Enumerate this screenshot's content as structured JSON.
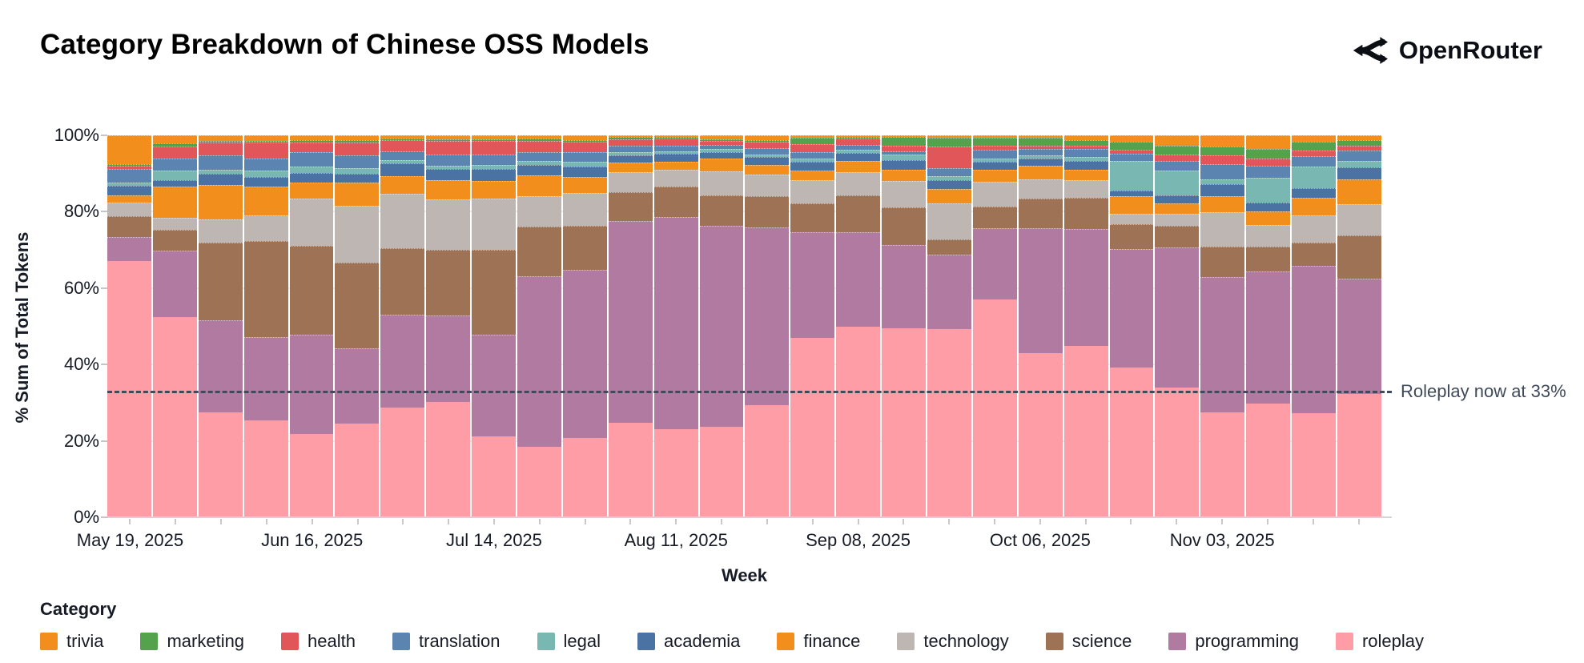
{
  "page": {
    "title": "Category Breakdown of Chinese OSS Models",
    "brand": "OpenRouter"
  },
  "chart_data": {
    "type": "bar",
    "stacked": true,
    "title": "Category Breakdown of Chinese OSS Models",
    "xlabel": "Week",
    "ylabel": "% Sum of Total Tokens",
    "ylim": [
      0,
      100
    ],
    "grid": true,
    "legend_position": "bottom-left",
    "legend_title": "Category",
    "yticks": [
      {
        "value": 0,
        "label": "0%"
      },
      {
        "value": 20,
        "label": "20%"
      },
      {
        "value": 40,
        "label": "40%"
      },
      {
        "value": 60,
        "label": "60%"
      },
      {
        "value": 80,
        "label": "80%"
      },
      {
        "value": 100,
        "label": "100%"
      }
    ],
    "categories": [
      "May 19, 2025",
      "May 26, 2025",
      "Jun 02, 2025",
      "Jun 09, 2025",
      "Jun 16, 2025",
      "Jun 23, 2025",
      "Jun 30, 2025",
      "Jul 07, 2025",
      "Jul 14, 2025",
      "Jul 21, 2025",
      "Jul 28, 2025",
      "Aug 04, 2025",
      "Aug 11, 2025",
      "Aug 18, 2025",
      "Aug 25, 2025",
      "Sep 01, 2025",
      "Sep 08, 2025",
      "Sep 15, 2025",
      "Sep 22, 2025",
      "Sep 29, 2025",
      "Oct 06, 2025",
      "Oct 13, 2025",
      "Oct 20, 2025",
      "Oct 27, 2025",
      "Nov 03, 2025",
      "Nov 10, 2025",
      "Nov 17, 2025",
      "Nov 24, 2025"
    ],
    "xtick_labels": [
      {
        "index": 0,
        "label": "May 19, 2025"
      },
      {
        "index": 4,
        "label": "Jun 16, 2025"
      },
      {
        "index": 8,
        "label": "Jul 14, 2025"
      },
      {
        "index": 12,
        "label": "Aug 11, 2025"
      },
      {
        "index": 16,
        "label": "Sep 08, 2025"
      },
      {
        "index": 20,
        "label": "Oct 06, 2025"
      },
      {
        "index": 24,
        "label": "Nov 03, 2025"
      }
    ],
    "colors": {
      "trivia": "#F28E1C",
      "marketing": "#54A24B",
      "health": "#E15759",
      "translation": "#5B84B0",
      "legal": "#79B7B2",
      "academia": "#4A72A3",
      "finance": "#F28E1C",
      "technology": "#BEB6B2",
      "science": "#9E7355",
      "programming": "#B07AA1",
      "roleplay": "#FF9DA7"
    },
    "legend_order": [
      "trivia",
      "marketing",
      "health",
      "translation",
      "legal",
      "academia",
      "finance",
      "technology",
      "science",
      "programming",
      "roleplay"
    ],
    "stack_order_note": "series listed bottom-to-top as stacked, values are percent of total tokens per week",
    "series": [
      {
        "name": "roleplay",
        "values": [
          68.5,
          53.5,
          28,
          26,
          22.3,
          25.1,
          29.4,
          30.9,
          21.6,
          18.8,
          21.3,
          25.3,
          23.6,
          24.1,
          30,
          48,
          51,
          50.6,
          50.4,
          58.2,
          43.8,
          45.9,
          40,
          34.7,
          28,
          30.5,
          27.9,
          33
        ]
      },
      {
        "name": "programming",
        "values": [
          6.3,
          17.5,
          24.5,
          21.9,
          26.3,
          19.9,
          24.6,
          22.9,
          27,
          45.4,
          44.6,
          53.8,
          56.4,
          53.6,
          47.4,
          28,
          25.1,
          21.9,
          19.6,
          18.8,
          33.2,
          31,
          31.5,
          37.3,
          36,
          35,
          39.1,
          30.5
        ]
      },
      {
        "name": "science",
        "values": [
          5.2,
          5.5,
          20.5,
          25.6,
          23.6,
          22.6,
          17.5,
          17.2,
          22.4,
          13.2,
          11.6,
          7.5,
          8,
          7.9,
          8,
          7.4,
          9.6,
          10,
          3.9,
          5.6,
          7.8,
          8,
          6.5,
          5.5,
          8,
          6.5,
          6,
          11.5
        ]
      },
      {
        "name": "technology",
        "values": [
          3.5,
          3,
          6,
          6.5,
          12.4,
          15,
          14.4,
          13.4,
          13.5,
          7.8,
          8.5,
          5,
          4.2,
          6.3,
          5.5,
          6,
          5.9,
          6.8,
          9.3,
          6.5,
          4.9,
          4.6,
          2.5,
          3,
          9,
          5.5,
          7,
          8
        ]
      },
      {
        "name": "finance",
        "values": [
          1.7,
          8,
          9,
          7.5,
          4,
          6,
          4.5,
          4.9,
          4.6,
          5.4,
          4.2,
          2.3,
          2,
          3.1,
          2.5,
          2.5,
          2.8,
          2.8,
          3.8,
          2.9,
          3.5,
          2.6,
          4.5,
          2.5,
          4,
          3.5,
          4.5,
          6.5
        ]
      },
      {
        "name": "academia",
        "values": [
          2.3,
          1.5,
          2.7,
          2.5,
          2.5,
          2.2,
          3.1,
          2.7,
          2.9,
          2.6,
          2.6,
          1.8,
          1.9,
          1.5,
          1.8,
          2,
          2,
          2.4,
          2,
          1.9,
          1.7,
          2.2,
          1.3,
          2,
          3,
          2,
          2.5,
          3
        ]
      },
      {
        "name": "legal",
        "values": [
          0.8,
          2.5,
          1,
          1.5,
          1.5,
          1.2,
          0.7,
          0.8,
          0.9,
          0.8,
          0.9,
          0.6,
          0.5,
          0.8,
          0.6,
          0.8,
          0.5,
          1.3,
          1,
          0.7,
          0.7,
          0.8,
          7.7,
          6.5,
          1,
          6.5,
          5.5,
          1.5
        ]
      },
      {
        "name": "translation",
        "values": [
          3.4,
          3,
          3.5,
          3,
          3.5,
          3.2,
          2.1,
          2.6,
          2.6,
          2.2,
          2.4,
          1.5,
          1.2,
          0.7,
          1.4,
          1.5,
          1.1,
          0.5,
          1.9,
          2.2,
          1.5,
          1.8,
          1.7,
          2.3,
          4,
          3,
          2.5,
          2.5
        ]
      },
      {
        "name": "health",
        "values": [
          0.6,
          3,
          3.3,
          4,
          2.5,
          3.4,
          2.8,
          3.5,
          3.4,
          2.8,
          2.6,
          1.6,
          1.7,
          1,
          1.5,
          1.8,
          1.5,
          1.4,
          5.6,
          0.8,
          0.6,
          0.7,
          0.8,
          1.4,
          2,
          1.7,
          1.4,
          1.2
        ]
      },
      {
        "name": "marketing",
        "values": [
          0.2,
          0.5,
          0.3,
          0.3,
          0.4,
          0.4,
          0.2,
          0.2,
          0.3,
          0.3,
          0.3,
          0.3,
          0.2,
          0.2,
          0.3,
          1.5,
          0.2,
          2,
          2.1,
          1.9,
          1.8,
          1.3,
          2,
          2.3,
          2.2,
          2.3,
          2.1,
          1.3
        ]
      },
      {
        "name": "trivia",
        "values": [
          7.5,
          2,
          1.2,
          1.2,
          1,
          1,
          0.7,
          0.9,
          0.8,
          0.7,
          1,
          0.3,
          0.3,
          0.8,
          1,
          0.5,
          0.3,
          0.3,
          0.4,
          0.5,
          0.5,
          1.1,
          1.5,
          2.5,
          2.8,
          3.5,
          1.5,
          1
        ]
      }
    ],
    "annotation": {
      "text": "Roleplay now at 33%",
      "value": 33
    }
  }
}
